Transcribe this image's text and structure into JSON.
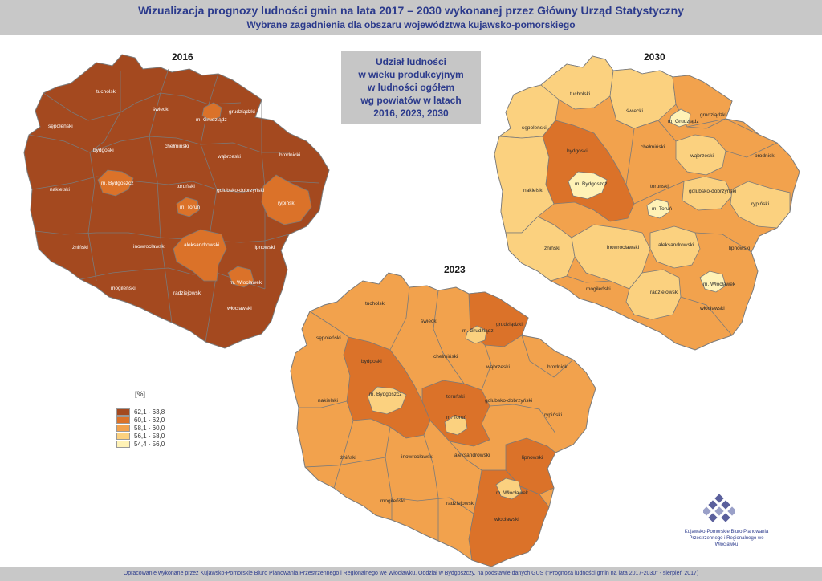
{
  "header": {
    "title": "Wizualizacja prognozy ludności gmin na lata 2017 – 2030 wykonanej przez Główny Urząd Statystyczny",
    "subtitle": "Wybrane zagadnienia dla obszaru województwa kujawsko-pomorskiego"
  },
  "infobox": {
    "lines": [
      "Udział ludności",
      "w wieku produkcyjnym",
      "w ludności ogółem",
      "wg powiatów w latach",
      "2016, 2023, 2030"
    ]
  },
  "maps": [
    {
      "year": "2016"
    },
    {
      "year": "2023"
    },
    {
      "year": "2030"
    }
  ],
  "legend": {
    "unit": "[%]",
    "classes": [
      {
        "label": "62,1 - 63,8",
        "color": "#a4491f"
      },
      {
        "label": "60,1 - 62,0",
        "color": "#db7229"
      },
      {
        "label": "58,1 - 60,0",
        "color": "#f2a24d"
      },
      {
        "label": "56,1 - 58,0",
        "color": "#fbd17f"
      },
      {
        "label": "54,4 - 56,0",
        "color": "#fff2b6"
      }
    ]
  },
  "district_names": {
    "tucholski": "tucholski",
    "swiecki": "świecki",
    "grudziadz_city": "m. Grudziądz",
    "grudziadzki": "grudziądzki",
    "sepolenski": "sępoleński",
    "chelminski": "chełmiński",
    "bydgoski": "bydgoski",
    "wabrzeski": "wąbrzeski",
    "brodnicki": "brodnicki",
    "bydgoszcz_city": "m. Bydgoszcz",
    "torunski": "toruński",
    "golubsko": "golubsko-dobrzyński",
    "naklenski": "nakielski",
    "torun_city": "m. Toruń",
    "rypinski": "rypiński",
    "aleksandrowski": "aleksandrowski",
    "zninski": "żniński",
    "inowroclawski": "inowrocławski",
    "lipnowski": "lipnowski",
    "wloclawek_city": "m. Włocławek",
    "mogilenski": "mogileński",
    "radziejowski": "radziejowski",
    "wloclawski": "włocławski"
  },
  "logo": {
    "org_line1": "Kujawsko-Pomorskie Biuro Planowania",
    "org_line2": "Przestrzennego i Regionalnego we Włocławku"
  },
  "footer": {
    "text": "Opracowanie wykonane przez Kujawsko-Pomorskie Biuro Planowania Przestrzennego i Regionalnego we Włocławku, Oddział w Bydgoszczy, na podstawie danych GUS (\"Prognoza ludności gmin na lata 2017-2030\" - sierpień 2017)"
  }
}
